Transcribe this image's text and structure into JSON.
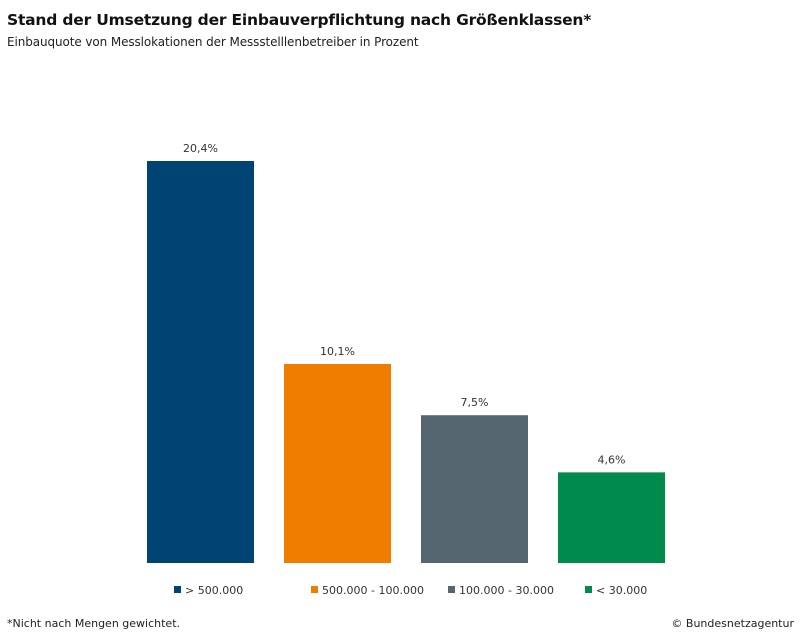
{
  "chart_data": {
    "type": "bar",
    "title": "Stand der Umsetzung der Einbauverpflichtung nach Größenklassen*",
    "subtitle": "Einbauquote von Messlokationen der Messstelllenbetreiber in Prozent",
    "categories": [
      "> 500.000",
      "500.000 - 100.000",
      "100.000 - 30.000",
      "< 30.000"
    ],
    "values": [
      20.4,
      10.1,
      7.5,
      4.6
    ],
    "value_labels": [
      "20,4%",
      "10,1%",
      "7,5%",
      "4,6%"
    ],
    "colors": [
      "#004474",
      "#ef7d00",
      "#566670",
      "#008a4b"
    ],
    "xlabel": "",
    "ylabel": "",
    "ylim": [
      0,
      20.4
    ],
    "grid": false,
    "legend": "bottom"
  },
  "footer": {
    "footnote": "*Nicht nach Mengen  gewichtet.",
    "copyright": "© Bundesnetzagentur"
  }
}
